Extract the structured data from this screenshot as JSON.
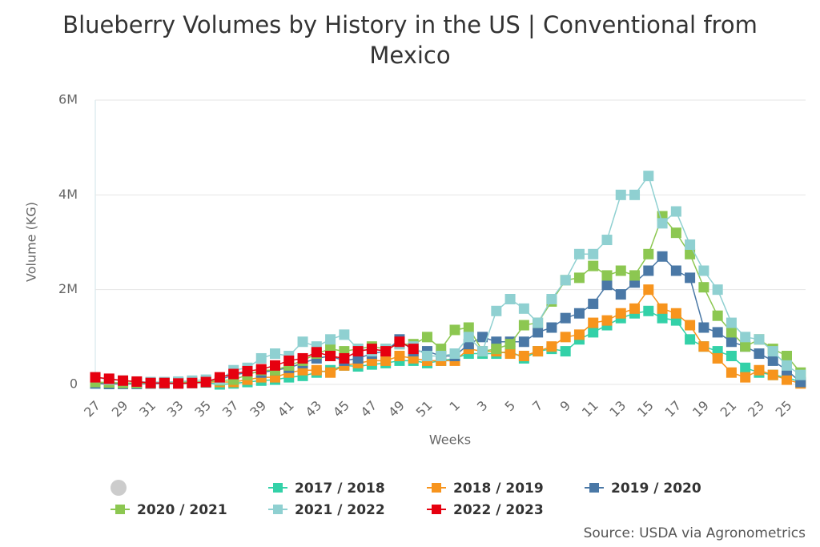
{
  "chart_data": {
    "type": "line",
    "title": "Blueberry Volumes by History in the US | Conventional from Mexico",
    "x_label": "Weeks",
    "y_label": "Volume (KG)",
    "source": "Source: USDA via Agronometrics",
    "categories": [
      "27",
      null,
      "29",
      null,
      "31",
      null,
      "33",
      null,
      "35",
      null,
      "37",
      null,
      "39",
      null,
      "41",
      null,
      "43",
      null,
      "45",
      null,
      "47",
      null,
      "49",
      null,
      "51",
      null,
      "1",
      null,
      "3",
      null,
      "5",
      null,
      "7",
      null,
      "9",
      null,
      "11",
      null,
      "13",
      null,
      "15",
      null,
      "17",
      null,
      "19",
      null,
      "21",
      null,
      "23",
      null,
      "25",
      null
    ],
    "ylim": [
      0,
      6000000
    ],
    "yticks": [
      0,
      {
        "value": 2000000,
        "label": "2M"
      },
      {
        "value": 4000000,
        "label": "4M"
      },
      {
        "value": 6000000,
        "label": "6M"
      }
    ],
    "grid": true,
    "legend": "bottom",
    "series": [
      {
        "name": "2017 / 2018",
        "color": "#33d1a8",
        "values": [
          20000,
          10000,
          20000,
          20000,
          20000,
          20000,
          30000,
          30000,
          40000,
          0,
          20000,
          50000,
          80000,
          100000,
          150000,
          180000,
          250000,
          300000,
          400000,
          380000,
          420000,
          450000,
          500000,
          500000,
          450000,
          500000,
          550000,
          650000,
          650000,
          650000,
          700000,
          550000,
          700000,
          750000,
          700000,
          950000,
          1100000,
          1250000,
          1400000,
          1500000,
          1550000,
          1400000,
          1350000,
          950000,
          800000,
          700000,
          600000,
          350000,
          250000,
          200000,
          150000,
          50000
        ]
      },
      {
        "name": "2018 / 2019",
        "color": "#f7941d",
        "values": [
          30000,
          20000,
          30000,
          20000,
          20000,
          30000,
          40000,
          40000,
          50000,
          50000,
          50000,
          100000,
          150000,
          150000,
          250000,
          300000,
          300000,
          250000,
          400000,
          450000,
          500000,
          500000,
          600000,
          550000,
          500000,
          500000,
          500000,
          750000,
          700000,
          700000,
          650000,
          600000,
          700000,
          800000,
          1000000,
          1050000,
          1300000,
          1350000,
          1500000,
          1600000,
          2000000,
          1600000,
          1500000,
          1250000,
          800000,
          550000,
          250000,
          150000,
          300000,
          200000,
          100000,
          20000
        ]
      },
      {
        "name": "2019 / 2020",
        "color": "#4a78a6",
        "values": [
          20000,
          10000,
          10000,
          10000,
          20000,
          20000,
          20000,
          30000,
          50000,
          100000,
          200000,
          250000,
          250000,
          300000,
          350000,
          450000,
          550000,
          600000,
          500000,
          550000,
          650000,
          700000,
          950000,
          700000,
          700000,
          600000,
          600000,
          850000,
          1000000,
          900000,
          900000,
          900000,
          1100000,
          1200000,
          1400000,
          1500000,
          1700000,
          2100000,
          1900000,
          2150000,
          2400000,
          2700000,
          2400000,
          2250000,
          1200000,
          1100000,
          900000,
          800000,
          650000,
          500000,
          300000,
          50000
        ]
      },
      {
        "name": "2020 / 2021",
        "color": "#8cc751",
        "values": [
          50000,
          40000,
          30000,
          30000,
          30000,
          30000,
          40000,
          50000,
          60000,
          80000,
          100000,
          200000,
          300000,
          300000,
          400000,
          500000,
          650000,
          750000,
          700000,
          750000,
          800000,
          750000,
          850000,
          850000,
          1000000,
          750000,
          1150000,
          1200000,
          700000,
          750000,
          850000,
          1250000,
          1300000,
          1750000,
          2200000,
          2250000,
          2500000,
          2300000,
          2400000,
          2300000,
          2750000,
          3550000,
          3200000,
          2750000,
          2050000,
          1450000,
          1100000,
          800000,
          950000,
          750000,
          600000,
          250000
        ]
      },
      {
        "name": "2021 / 2022",
        "color": "#8fd0d1",
        "values": [
          150000,
          100000,
          80000,
          60000,
          50000,
          50000,
          60000,
          80000,
          100000,
          100000,
          300000,
          350000,
          550000,
          650000,
          600000,
          900000,
          800000,
          950000,
          1050000,
          750000,
          700000,
          750000,
          850000,
          800000,
          600000,
          600000,
          650000,
          1000000,
          700000,
          1550000,
          1800000,
          1600000,
          1300000,
          1800000,
          2200000,
          2750000,
          2750000,
          3050000,
          4000000,
          4000000,
          4400000,
          3400000,
          3650000,
          2950000,
          2400000,
          2000000,
          1300000,
          1000000,
          950000,
          700000,
          400000,
          200000
        ]
      },
      {
        "name": "2022 / 2023",
        "color": "#e6000f",
        "values": [
          150000,
          120000,
          80000,
          60000,
          30000,
          30000,
          20000,
          30000,
          50000,
          150000,
          220000,
          280000,
          320000,
          400000,
          500000,
          550000,
          680000,
          600000,
          550000,
          700000,
          750000,
          700000,
          900000,
          750000,
          null,
          null,
          null,
          null,
          null,
          null,
          null,
          null,
          null,
          null,
          null,
          null,
          null,
          null,
          null,
          null,
          null,
          null,
          null,
          null,
          null,
          null,
          null,
          null,
          null,
          null,
          null,
          null
        ]
      }
    ]
  }
}
